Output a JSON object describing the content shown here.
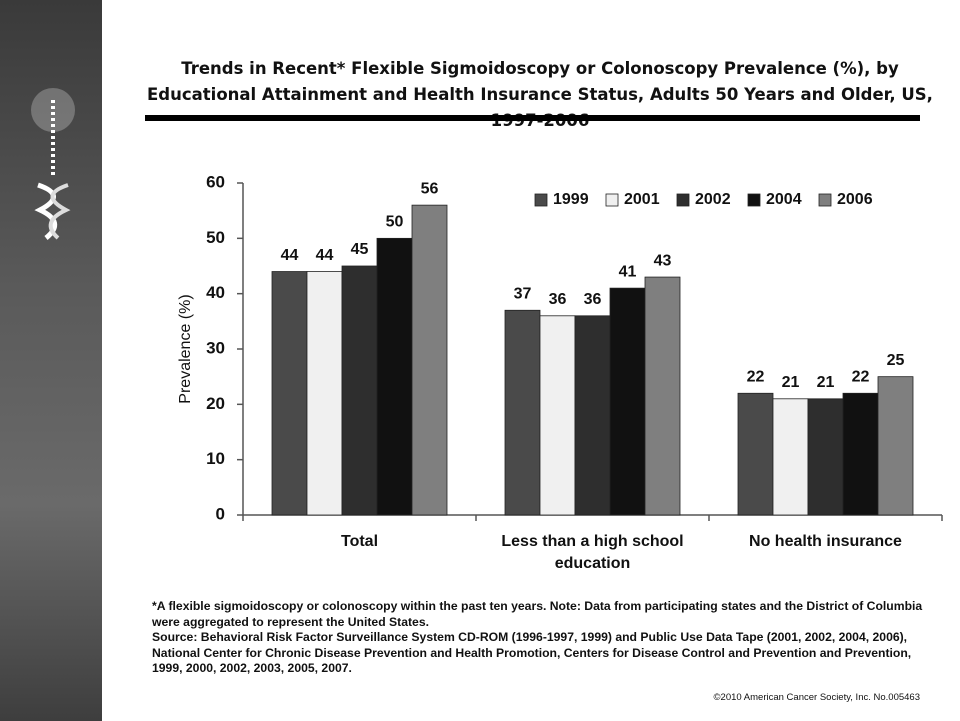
{
  "title": "Trends in Recent* Flexible Sigmoidoscopy or Colonoscopy Prevalence (%), by Educational Attainment and Health Insurance Status, Adults 50 Years and Older, US, 1997-2006",
  "chart_data": {
    "type": "bar",
    "y_label": "Prevalence (%)",
    "categories": [
      "Total",
      "Less than a high school education",
      "No health insurance"
    ],
    "series": [
      {
        "name": "1999",
        "color": "#4a4a4a",
        "values": [
          44,
          37,
          22
        ]
      },
      {
        "name": "2001",
        "color": "#f0f0f0",
        "values": [
          44,
          36,
          21
        ]
      },
      {
        "name": "2002",
        "color": "#2e2e2e",
        "values": [
          45,
          36,
          21
        ]
      },
      {
        "name": "2004",
        "color": "#111111",
        "values": [
          50,
          41,
          22
        ]
      },
      {
        "name": "2006",
        "color": "#7f7f7f",
        "values": [
          56,
          43,
          25
        ]
      }
    ],
    "ylim": [
      0,
      60
    ],
    "yticks": [
      0,
      10,
      20,
      30,
      40,
      50,
      60
    ],
    "legend": "top-right"
  },
  "notes": [
    "*A flexible sigmoidoscopy or colonoscopy within the past ten years. Note: Data from participating states and the District of Columbia were aggregated to represent the United States.",
    "Source: Behavioral Risk Factor Surveillance System CD-ROM (1996-1997, 1999) and Public Use Data Tape (2001, 2002, 2004, 2006), National Center for Chronic Disease Prevention and Health Promotion, Centers for Disease Control and Prevention and Prevention, 1999, 2000, 2002, 2003, 2005, 2007."
  ],
  "copyright": "©2010 American Cancer Society, Inc. No.005463"
}
